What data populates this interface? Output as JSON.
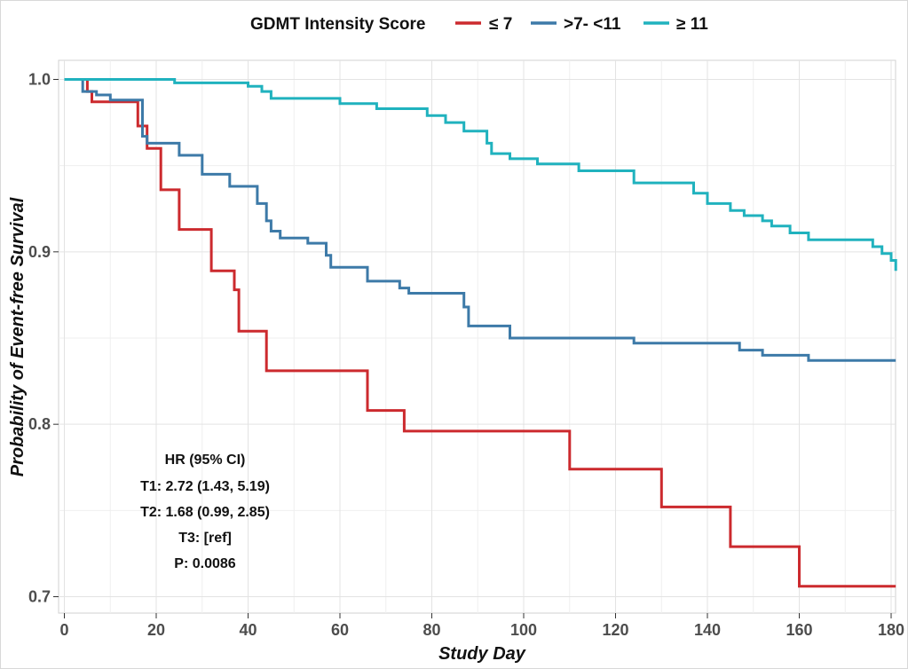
{
  "chart_data": {
    "type": "line",
    "subtype": "kaplan-meier step",
    "title": "",
    "xlabel": "Study Day",
    "ylabel": "Probability of Event-free Survival",
    "xlim": [
      0,
      181
    ],
    "ylim": [
      0.69,
      1.01
    ],
    "xticks": [
      0,
      20,
      40,
      60,
      80,
      100,
      120,
      140,
      160,
      180
    ],
    "yticks": [
      0.7,
      0.8,
      0.9,
      1.0
    ],
    "ytick_labels": [
      "0.7",
      "0.8",
      "0.9",
      "1.0"
    ],
    "grid": true,
    "legend": {
      "title": "GDMT Intensity Score",
      "position": "top",
      "entries": [
        "≤ 7",
        ">7- <11",
        "≥ 11"
      ]
    },
    "series": [
      {
        "name": "≤ 7",
        "color": "#cc2a2e",
        "x": [
          0,
          5,
          6,
          16,
          18,
          21,
          25,
          32,
          37,
          38,
          44,
          66,
          74,
          110,
          130,
          145,
          160,
          181
        ],
        "y": [
          1.0,
          0.993,
          0.987,
          0.973,
          0.96,
          0.936,
          0.913,
          0.889,
          0.878,
          0.854,
          0.831,
          0.808,
          0.796,
          0.774,
          0.752,
          0.729,
          0.706,
          0.706
        ]
      },
      {
        "name": ">7- <11",
        "color": "#3d7aa8",
        "x": [
          0,
          4,
          7,
          10,
          17,
          18,
          25,
          30,
          36,
          42,
          44,
          45,
          47,
          53,
          57,
          58,
          66,
          73,
          75,
          87,
          88,
          97,
          124,
          147,
          152,
          162,
          181
        ],
        "y": [
          1.0,
          0.993,
          0.991,
          0.988,
          0.967,
          0.963,
          0.956,
          0.945,
          0.938,
          0.928,
          0.918,
          0.912,
          0.908,
          0.905,
          0.898,
          0.891,
          0.883,
          0.879,
          0.876,
          0.868,
          0.857,
          0.85,
          0.847,
          0.843,
          0.84,
          0.837,
          0.837
        ]
      },
      {
        "name": "≥ 11",
        "color": "#20b2be",
        "x": [
          0,
          24,
          40,
          43,
          45,
          60,
          68,
          79,
          83,
          87,
          92,
          93,
          97,
          103,
          112,
          124,
          137,
          140,
          145,
          148,
          152,
          154,
          158,
          162,
          176,
          178,
          180,
          181
        ],
        "y": [
          1.0,
          0.998,
          0.996,
          0.993,
          0.989,
          0.986,
          0.983,
          0.979,
          0.975,
          0.97,
          0.963,
          0.957,
          0.954,
          0.951,
          0.947,
          0.94,
          0.934,
          0.928,
          0.924,
          0.921,
          0.918,
          0.915,
          0.911,
          0.907,
          0.903,
          0.899,
          0.895,
          0.889
        ]
      }
    ],
    "annotations": [
      "HR (95% CI)",
      "T1: 2.72 (1.43, 5.19)",
      "T2: 1.68 (0.99, 2.85)",
      "T3: [ref]",
      "P: 0.0086"
    ]
  }
}
